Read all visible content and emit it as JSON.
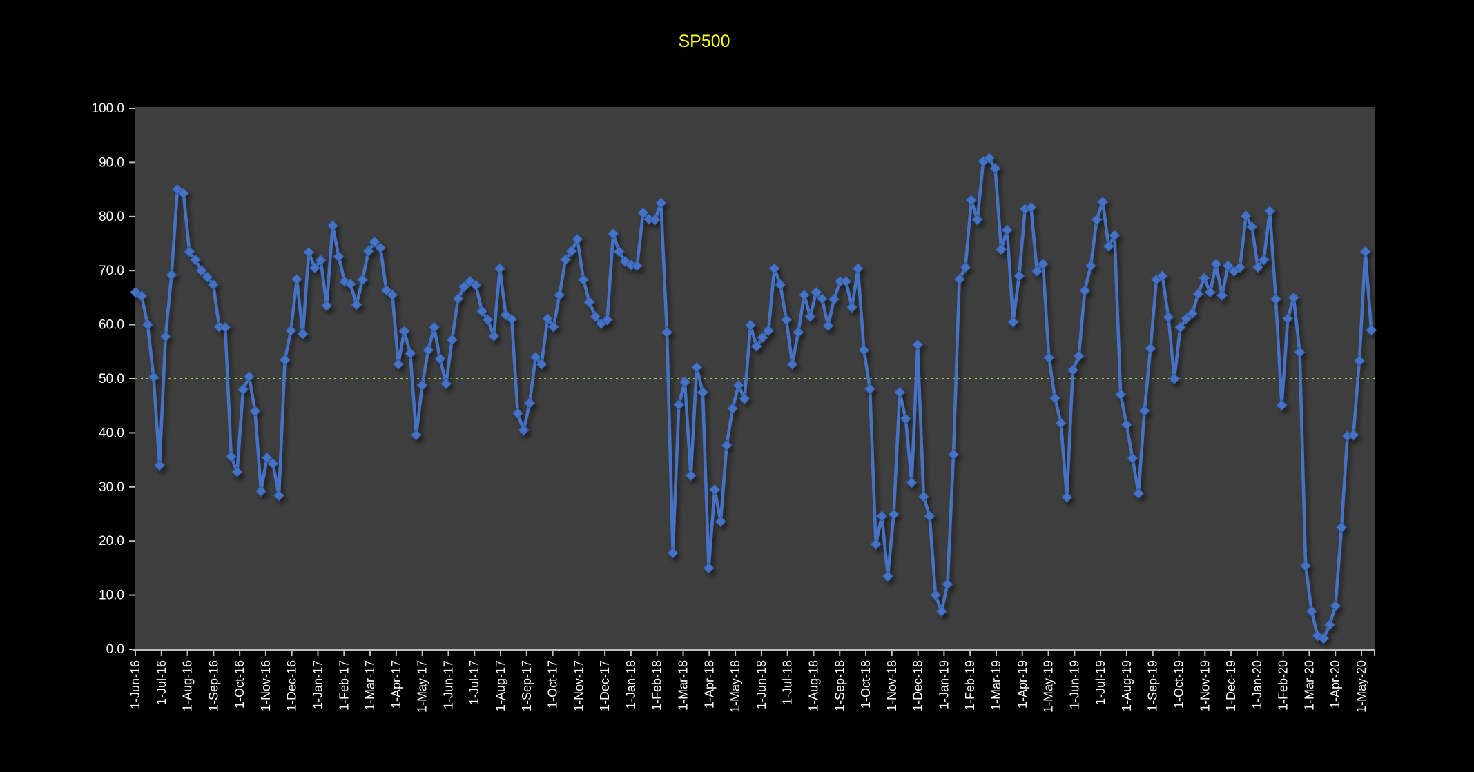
{
  "title": "SP500",
  "colors": {
    "page_bg": "#000000",
    "plot_bg": "#3E3E3E",
    "title": "#FFFF00",
    "axis_text": "#FFFFFF",
    "axis_line": "#BFBFBF",
    "series_line": "#4472C4",
    "marker_fill": "#4472C4",
    "marker_edge": "#2F5597",
    "reference_line": "#92D050"
  },
  "chart_data": {
    "type": "line",
    "title": "SP500",
    "xlabel": "",
    "ylabel": "",
    "ylim": [
      0,
      100
    ],
    "y_tick_step": 10,
    "y_tick_labels": [
      "0.0",
      "10.0",
      "20.0",
      "30.0",
      "40.0",
      "50.0",
      "60.0",
      "70.0",
      "80.0",
      "90.0",
      "100.0"
    ],
    "x_tick_labels": [
      "1-Jun-16",
      "1-Jul-16",
      "1-Aug-16",
      "1-Sep-16",
      "1-Oct-16",
      "1-Nov-16",
      "1-Dec-16",
      "1-Jan-17",
      "1-Feb-17",
      "1-Mar-17",
      "1-Apr-17",
      "1-May-17",
      "1-Jun-17",
      "1-Jul-17",
      "1-Aug-17",
      "1-Sep-17",
      "1-Oct-17",
      "1-Nov-17",
      "1-Dec-17",
      "1-Jan-18",
      "1-Feb-18",
      "1-Mar-18",
      "1-Apr-18",
      "1-May-18",
      "1-Jun-18",
      "1-Jul-18",
      "1-Aug-18",
      "1-Sep-18",
      "1-Oct-18",
      "1-Nov-18",
      "1-Dec-18",
      "1-Jan-19",
      "1-Feb-19",
      "1-Mar-19",
      "1-Apr-19",
      "1-May-19",
      "1-Jun-19",
      "1-Jul-19",
      "1-Aug-19",
      "1-Sep-19",
      "1-Oct-19",
      "1-Nov-19",
      "1-Dec-19",
      "1-Jan-20",
      "1-Feb-20",
      "1-Mar-20",
      "1-Apr-20",
      "1-May-20"
    ],
    "x_unit": "weekly points starting 1-Jun-16",
    "grid": "off",
    "legend": "none",
    "reference_line": {
      "value": 50.0,
      "style": "dotted",
      "color": "#92D050"
    },
    "marker": "diamond",
    "series": [
      {
        "name": "SP500",
        "color": "#4472C4",
        "values": [
          66.0,
          65.3,
          60.0,
          50.3,
          34.0,
          57.8,
          69.2,
          85.0,
          84.3,
          73.5,
          72.0,
          70.0,
          68.8,
          67.4,
          59.6,
          59.5,
          35.6,
          32.8,
          48.0,
          50.4,
          44.0,
          29.2,
          35.4,
          34.3,
          28.4,
          53.5,
          58.9,
          68.4,
          58.3,
          73.4,
          70.5,
          71.9,
          63.5,
          78.3,
          72.6,
          68.0,
          67.5,
          63.7,
          68.3,
          73.6,
          75.3,
          74.2,
          66.4,
          65.5,
          52.7,
          58.8,
          54.7,
          39.6,
          48.8,
          55.3,
          59.5,
          53.7,
          49.1,
          57.2,
          64.8,
          67.0,
          68.0,
          67.3,
          62.5,
          60.9,
          57.9,
          70.4,
          61.8,
          61.0,
          43.6,
          40.5,
          45.5,
          54.0,
          52.7,
          61.1,
          59.6,
          65.5,
          72.0,
          73.6,
          75.8,
          68.3,
          64.2,
          61.5,
          60.2,
          60.9,
          76.8,
          73.5,
          71.7,
          71.0,
          70.9,
          80.7,
          79.5,
          79.4,
          82.5,
          58.6,
          17.8,
          45.2,
          49.4,
          32.1,
          52.1,
          47.5,
          15.0,
          29.5,
          23.6,
          37.7,
          44.5,
          48.8,
          46.3,
          59.9,
          56.0,
          57.6,
          58.9,
          70.4,
          67.4,
          60.9,
          52.7,
          58.6,
          65.5,
          61.5,
          66.0,
          64.8,
          59.8,
          64.7,
          68.0,
          68.0,
          63.2,
          70.4,
          55.3,
          48.1,
          19.4,
          24.6,
          13.5,
          24.9,
          47.5,
          42.6,
          30.8,
          56.3,
          28.2,
          24.6,
          10.0,
          7.0,
          12.0,
          36.0,
          68.4,
          70.6,
          83.0,
          79.4,
          90.2,
          90.8,
          88.9,
          73.9,
          77.5,
          60.5,
          69.0,
          81.4,
          81.7,
          69.9,
          71.2,
          53.9,
          46.4,
          41.8,
          28.1,
          51.6,
          54.2,
          66.3,
          70.9,
          79.4,
          82.7,
          74.5,
          76.5,
          47.1,
          41.5,
          35.3,
          28.8,
          44.1,
          55.6,
          68.3,
          69.0,
          61.4,
          50.0,
          59.5,
          61.1,
          62.1,
          65.7,
          68.6,
          66.0,
          71.2,
          65.4,
          70.9,
          69.9,
          70.6,
          80.1,
          78.1,
          70.6,
          72.0,
          81.0,
          64.7,
          45.1,
          61.1,
          65.0,
          54.9,
          15.4,
          7.0,
          2.5,
          2.0,
          4.5,
          8.0,
          22.5,
          39.4,
          39.6,
          53.3,
          73.5,
          59.0
        ]
      }
    ]
  }
}
